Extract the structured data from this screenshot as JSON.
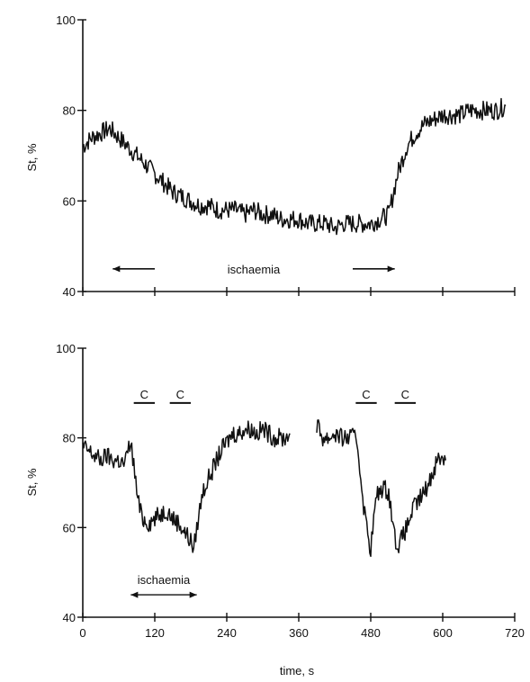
{
  "chart_data": [
    {
      "type": "line",
      "ylabel": "St, %",
      "xlabel": "",
      "ylim": [
        40,
        100
      ],
      "xlim": [
        0,
        720
      ],
      "yticks": [
        40,
        60,
        80,
        100
      ],
      "xticks": [
        0,
        120,
        240,
        360,
        480,
        600,
        720
      ],
      "xtick_labels_shown": false,
      "annotations": [
        {
          "text": "ischaemia",
          "arrow_left_at": [
            50,
            120
          ],
          "arrow_right_at": [
            450,
            520
          ],
          "y": 45
        }
      ],
      "series": [
        {
          "segments": [
            {
              "x": [
                0,
                15,
                30,
                45,
                60,
                75,
                90,
                105,
                120,
                135,
                150,
                165,
                180,
                195,
                210,
                225,
                240,
                255,
                270,
                285,
                300,
                315,
                330,
                345,
                360,
                375,
                390,
                405,
                420,
                435,
                450,
                465,
                480,
                495,
                510,
                525,
                540,
                555,
                570,
                585,
                600,
                615,
                630,
                645,
                660,
                675,
                690,
                705
              ],
              "y": [
                72,
                74,
                75,
                76,
                74,
                72,
                70,
                68,
                66,
                64,
                62,
                61,
                60,
                59,
                59,
                58,
                58,
                58,
                57,
                58,
                57,
                57,
                56,
                56,
                56,
                55,
                55,
                55,
                54,
                55,
                55,
                55,
                55,
                56,
                57,
                66,
                72,
                75,
                77,
                78,
                79,
                79,
                79,
                80,
                80,
                80,
                80,
                81
              ]
            }
          ]
        }
      ]
    },
    {
      "type": "line",
      "ylabel": "St, %",
      "xlabel": "time, s",
      "ylim": [
        40,
        100
      ],
      "xlim": [
        0,
        720
      ],
      "yticks": [
        40,
        60,
        80,
        100
      ],
      "xticks": [
        0,
        120,
        240,
        360,
        480,
        600,
        720
      ],
      "xtick_labels": [
        "0",
        "120",
        "240",
        "360",
        "480",
        "600",
        "720"
      ],
      "annotations": [
        {
          "text": "ischaemia",
          "arrow_from": 80,
          "arrow_to": 190,
          "y": 45
        },
        {
          "text": "C",
          "bar_from": 85,
          "bar_to": 120,
          "y": 89
        },
        {
          "text": "C",
          "bar_from": 145,
          "bar_to": 180,
          "y": 89
        },
        {
          "text": "C",
          "bar_from": 455,
          "bar_to": 490,
          "y": 89
        },
        {
          "text": "C",
          "bar_from": 520,
          "bar_to": 555,
          "y": 89
        }
      ],
      "series": [
        {
          "segments": [
            {
              "x": [
                0,
                10,
                20,
                30,
                40,
                50,
                60,
                70,
                75,
                80,
                85,
                90,
                95,
                100,
                110,
                120,
                130,
                140,
                150,
                160,
                170,
                180,
                185,
                190,
                195,
                200,
                210,
                220,
                230,
                240,
                250,
                260,
                270,
                280,
                290,
                300,
                310,
                320,
                330,
                340,
                345
              ],
              "y": [
                78,
                77,
                76,
                75,
                76,
                75,
                75,
                74,
                77,
                79,
                74,
                68,
                64,
                62,
                61,
                62,
                63,
                64,
                62,
                61,
                59,
                57,
                55,
                60,
                64,
                68,
                71,
                74,
                77,
                79,
                81,
                81,
                82,
                82,
                81,
                82,
                81,
                80,
                80,
                80,
                81
              ]
            },
            {
              "x": [
                390,
                400,
                410,
                420,
                430,
                440,
                450,
                455,
                460,
                465,
                470,
                475,
                480,
                485,
                490,
                500,
                510,
                515,
                520,
                525,
                530,
                540,
                550,
                560,
                570,
                580,
                590,
                600,
                605
              ],
              "y": [
                83,
                80,
                80,
                81,
                80,
                80,
                80,
                81,
                76,
                69,
                63,
                59,
                55,
                62,
                67,
                69,
                68,
                63,
                58,
                56,
                57,
                60,
                64,
                66,
                68,
                71,
                75,
                76,
                75
              ]
            }
          ]
        }
      ]
    }
  ]
}
